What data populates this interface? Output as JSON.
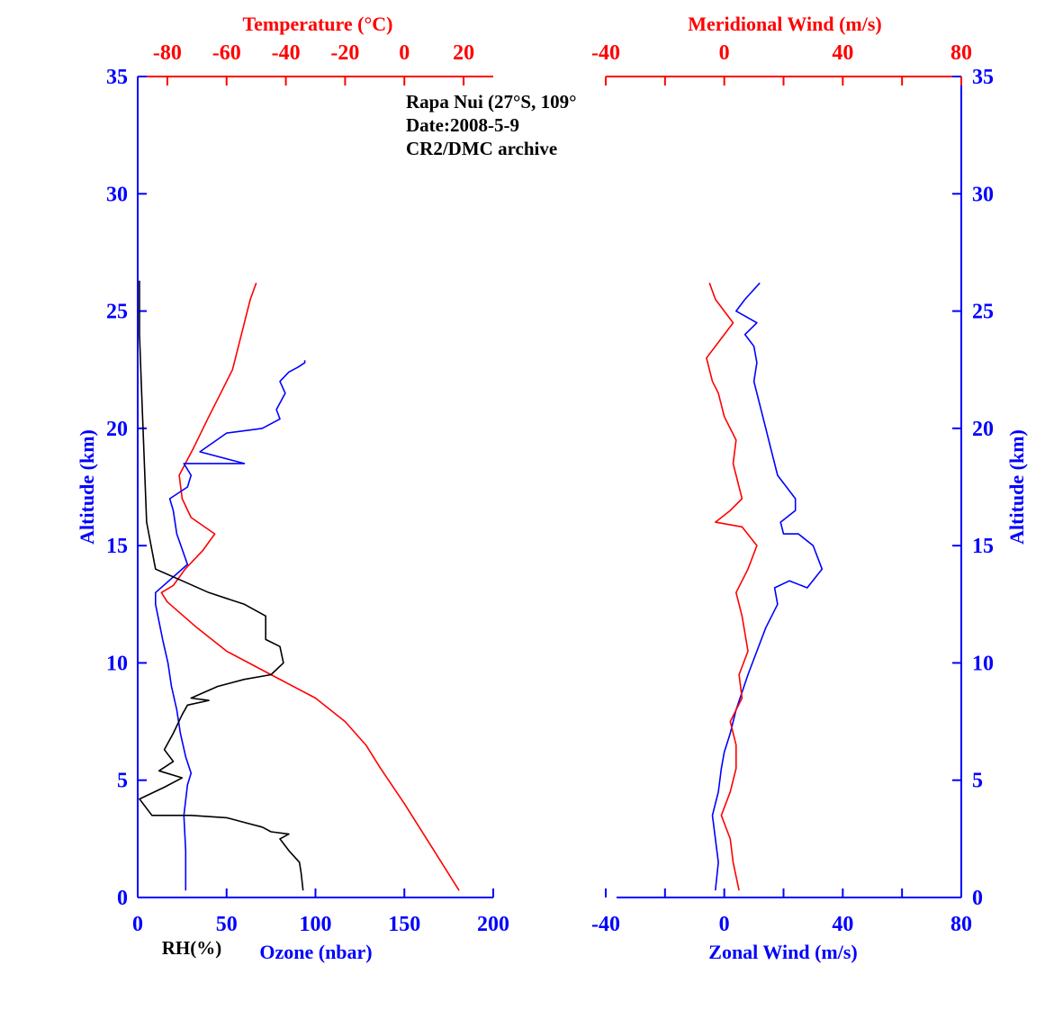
{
  "annotation": [
    "Rapa Nui (27°S, 109°",
    "Date:2008-5-9",
    "CR2/DMC archive"
  ],
  "colors": {
    "blue": "#0000ff",
    "red": "#ff0000",
    "black": "#000000"
  },
  "chart_data": [
    {
      "type": "line",
      "title": "",
      "ylabel": "Altitude (km)",
      "ylim": [
        0,
        35
      ],
      "yticks": [
        "0",
        "5",
        "10",
        "15",
        "20",
        "25",
        "30",
        "35"
      ],
      "x_bottom": {
        "label": "Ozone (nbar)",
        "extra_label": "RH(%)",
        "range": [
          0,
          200
        ],
        "ticks": [
          "0",
          "50",
          "100",
          "150",
          "200"
        ]
      },
      "x_top": {
        "label": "Temperature (°C)",
        "range": [
          -90,
          30
        ],
        "ticks": [
          "-80",
          "-60",
          "-40",
          "-20",
          "0",
          "20"
        ]
      },
      "series": [
        {
          "name": "",
          "axis": "temperature",
          "color": "#ff0000",
          "x": [
            18.5,
            10,
            0,
            -8,
            -13,
            -20,
            -30,
            -45,
            -60,
            -70,
            -80,
            -82,
            -78,
            -74,
            -68,
            -64,
            -72,
            -75,
            -76,
            -71,
            -66,
            -62,
            -58,
            -55,
            -52,
            -50
          ],
          "y": [
            0.3,
            2,
            4,
            5.5,
            6.5,
            7.5,
            8.5,
            9.5,
            10.5,
            11.5,
            12.6,
            13,
            13.3,
            14,
            14.8,
            15.5,
            16.2,
            17,
            18,
            19.2,
            20.5,
            21.5,
            22.5,
            24,
            25.5,
            26.2
          ]
        },
        {
          "name": "",
          "axis": "ozone",
          "color": "#0000ff",
          "x": [
            27,
            27,
            26,
            28,
            30,
            27,
            24,
            22,
            19,
            17,
            14,
            10,
            10,
            28,
            22,
            20,
            18,
            28,
            30,
            26,
            60,
            35,
            50,
            70,
            80,
            78,
            83,
            80,
            85,
            90,
            94,
            94
          ],
          "y": [
            0.3,
            2,
            3.5,
            4.8,
            5.3,
            6,
            7,
            8,
            9,
            10,
            11,
            12.5,
            13,
            14.2,
            15.5,
            16.5,
            17,
            17.5,
            18,
            18.5,
            18.5,
            19,
            19.8,
            20,
            20.4,
            20.8,
            21.5,
            22,
            22.4,
            22.6,
            22.8,
            22.9
          ]
        },
        {
          "name": "",
          "axis": "rh",
          "color": "#000000",
          "x": [
            93,
            92,
            91,
            85,
            80,
            85,
            75,
            70,
            60,
            50,
            30,
            8,
            1,
            15,
            25,
            12,
            20,
            15,
            20,
            25,
            28,
            40,
            30,
            45,
            60,
            75,
            82,
            80,
            72,
            72,
            72,
            60,
            40,
            25,
            10,
            5,
            4,
            3,
            2,
            1,
            1,
            1
          ],
          "y": [
            0.3,
            1,
            1.5,
            2,
            2.5,
            2.7,
            2.8,
            3,
            3.2,
            3.4,
            3.5,
            3.5,
            4.2,
            4.7,
            5.1,
            5.4,
            5.8,
            6.3,
            7,
            7.8,
            8.2,
            8.4,
            8.5,
            9,
            9.3,
            9.5,
            10,
            10.7,
            11,
            11.5,
            12,
            12.5,
            13,
            13.5,
            14,
            16,
            18,
            20,
            22,
            24,
            25.5,
            26.3
          ]
        }
      ]
    },
    {
      "type": "line",
      "title": "",
      "ylabel": "Altitude (km)",
      "ylim": [
        0,
        35
      ],
      "yticks": [
        "0",
        "5",
        "10",
        "15",
        "20",
        "25",
        "30",
        "35"
      ],
      "x_bottom": {
        "label": "Zonal Wind (m/s)",
        "range": [
          -40,
          80
        ],
        "ticks": [
          "-40",
          "0",
          "40",
          "80"
        ]
      },
      "x_top": {
        "label": "Meridional Wind (m/s)",
        "range": [
          -40,
          80
        ],
        "ticks": [
          "-40",
          "0",
          "40",
          "80"
        ]
      },
      "series": [
        {
          "name": "",
          "axis": "zonal",
          "color": "#0000ff",
          "x": [
            -3,
            -2,
            -3,
            -4,
            -2,
            -1,
            0,
            2,
            4,
            8,
            11,
            14,
            18,
            17,
            22,
            28,
            33,
            30,
            25,
            20,
            19,
            24,
            24,
            18,
            16,
            14,
            12,
            10,
            11,
            10,
            7,
            11,
            4,
            7,
            12
          ],
          "y": [
            0.3,
            1.5,
            2.5,
            3.5,
            4.5,
            5.5,
            6.2,
            7,
            8,
            9.5,
            10.5,
            11.5,
            12.5,
            13.2,
            13.5,
            13.2,
            14,
            15,
            15.5,
            15.5,
            16,
            16.5,
            17,
            18,
            19,
            20,
            21,
            22,
            22.8,
            23.5,
            24,
            24.5,
            25,
            25.5,
            26.2
          ]
        },
        {
          "name": "",
          "axis": "meridional",
          "color": "#ff0000",
          "x": [
            5,
            3,
            2,
            -1,
            2,
            4,
            4,
            2,
            6,
            5,
            8,
            6,
            4,
            8,
            11,
            6,
            -3,
            2,
            6,
            3,
            4,
            0,
            -2,
            -4,
            -5,
            -6,
            0,
            3,
            -3,
            -5
          ],
          "y": [
            0.3,
            1.5,
            2.5,
            3.5,
            4.5,
            5.5,
            6.5,
            7.5,
            8.5,
            9.5,
            10.5,
            12,
            13,
            14,
            15,
            15.8,
            16,
            16.5,
            17,
            18.5,
            19.5,
            20.5,
            21.5,
            22,
            22.5,
            23,
            24,
            24.5,
            25.5,
            26.2
          ]
        }
      ]
    }
  ]
}
